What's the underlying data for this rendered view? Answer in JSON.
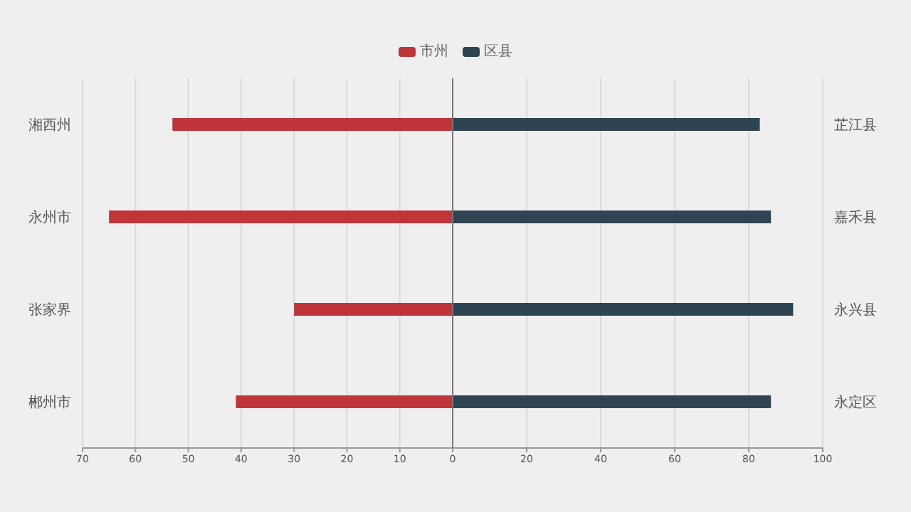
{
  "chart_data": [
    {
      "type": "bar",
      "orientation": "horizontal",
      "categories": [
        "湘西州",
        "永州市",
        "张家界",
        "郴州市"
      ],
      "series": [
        {
          "name": "市州",
          "color": "#c0353a",
          "values": [
            53,
            65,
            30,
            41
          ]
        }
      ],
      "xlim": [
        70,
        0
      ],
      "xticks": [
        70,
        60,
        50,
        40,
        30,
        20,
        10,
        0
      ],
      "grid": "x",
      "legend": "top"
    },
    {
      "type": "bar",
      "orientation": "horizontal",
      "categories": [
        "芷江县",
        "嘉禾县",
        "永兴县",
        "永定区"
      ],
      "series": [
        {
          "name": "区县",
          "color": "#2e4452",
          "values": [
            83,
            86,
            92,
            86
          ]
        }
      ],
      "xlim": [
        0,
        100
      ],
      "xticks": [
        20,
        40,
        60,
        80,
        100
      ],
      "grid": "x",
      "legend": "top"
    }
  ]
}
